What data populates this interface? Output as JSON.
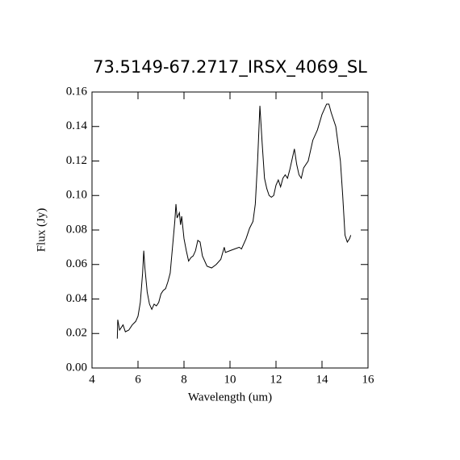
{
  "chart_data": {
    "type": "line",
    "title": "73.5149-67.2717_IRSX_4069_SL",
    "x_label": "Wavelength (um)",
    "y_label": "Flux (Jy)",
    "color": "#000000",
    "xlim": [
      4,
      16
    ],
    "ylim": [
      0,
      0.16
    ],
    "xticks": [
      4,
      6,
      8,
      10,
      12,
      14,
      16
    ],
    "yticks": [
      {
        "value": 0,
        "label": "0.00"
      },
      0.02,
      0.04,
      0.06,
      0.08,
      {
        "value": 0.1,
        "label": "0.10"
      },
      0.12,
      0.14,
      0.16
    ],
    "x": [
      5.1,
      5.12,
      5.2,
      5.35,
      5.45,
      5.6,
      5.75,
      5.9,
      6.0,
      6.1,
      6.2,
      6.25,
      6.3,
      6.4,
      6.5,
      6.6,
      6.7,
      6.8,
      6.9,
      7.0,
      7.1,
      7.2,
      7.3,
      7.4,
      7.5,
      7.6,
      7.65,
      7.7,
      7.8,
      7.85,
      7.9,
      8.0,
      8.1,
      8.2,
      8.3,
      8.4,
      8.5,
      8.6,
      8.7,
      8.8,
      9.0,
      9.2,
      9.4,
      9.6,
      9.75,
      9.8,
      10.0,
      10.2,
      10.4,
      10.5,
      10.7,
      10.85,
      11.0,
      11.1,
      11.2,
      11.3,
      11.4,
      11.5,
      11.6,
      11.7,
      11.8,
      11.9,
      12.0,
      12.1,
      12.2,
      12.3,
      12.4,
      12.5,
      12.6,
      12.8,
      12.9,
      13.0,
      13.1,
      13.2,
      13.4,
      13.6,
      13.8,
      14.0,
      14.2,
      14.3,
      14.4,
      14.6,
      14.7,
      14.8,
      14.9,
      15.0,
      15.1,
      15.2,
      15.25
    ],
    "values": [
      0.017,
      0.028,
      0.022,
      0.025,
      0.021,
      0.022,
      0.025,
      0.027,
      0.03,
      0.038,
      0.055,
      0.068,
      0.058,
      0.044,
      0.037,
      0.034,
      0.037,
      0.036,
      0.038,
      0.043,
      0.045,
      0.046,
      0.05,
      0.055,
      0.07,
      0.085,
      0.095,
      0.087,
      0.09,
      0.083,
      0.088,
      0.075,
      0.068,
      0.062,
      0.064,
      0.065,
      0.068,
      0.074,
      0.073,
      0.065,
      0.059,
      0.058,
      0.06,
      0.063,
      0.07,
      0.067,
      0.068,
      0.069,
      0.07,
      0.069,
      0.075,
      0.081,
      0.085,
      0.095,
      0.12,
      0.152,
      0.13,
      0.11,
      0.104,
      0.1,
      0.099,
      0.1,
      0.106,
      0.109,
      0.105,
      0.11,
      0.112,
      0.11,
      0.115,
      0.127,
      0.118,
      0.112,
      0.11,
      0.116,
      0.12,
      0.132,
      0.138,
      0.147,
      0.153,
      0.153,
      0.148,
      0.14,
      0.13,
      0.12,
      0.1,
      0.077,
      0.073,
      0.075,
      0.077
    ]
  }
}
